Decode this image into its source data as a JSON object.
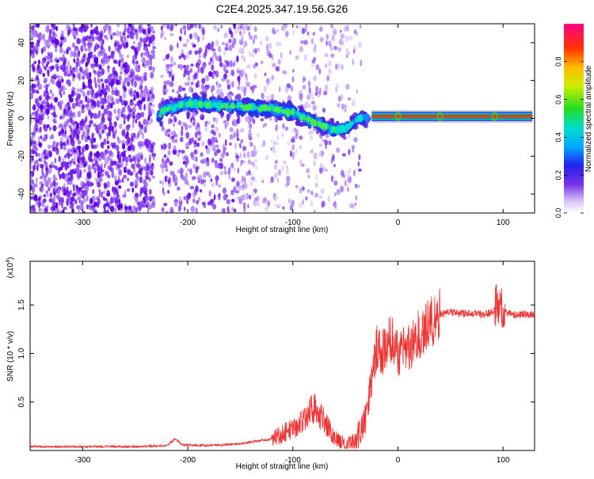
{
  "chart_data": [
    {
      "type": "heatmap",
      "title": "C2E4.2025.347.19.56.G26",
      "xlabel": "Height of straight line (km)",
      "ylabel": "Frequency (Hz)",
      "xlim": [
        -350,
        130
      ],
      "ylim": [
        -50,
        50
      ],
      "x_ticks": [
        -300,
        -200,
        -100,
        0,
        100
      ],
      "y_ticks": [
        -40,
        -20,
        0,
        20,
        40
      ],
      "colorbar": {
        "label": "Normalized spectral amplitude",
        "range": [
          0,
          1
        ],
        "ticks": [
          "0.0",
          "0.2",
          "0.4",
          "0.6",
          "0.8"
        ]
      },
      "ridge": [
        {
          "x": -225,
          "y": 4
        },
        {
          "x": -200,
          "y": 8
        },
        {
          "x": -170,
          "y": 7
        },
        {
          "x": -140,
          "y": 6
        },
        {
          "x": -115,
          "y": 5
        },
        {
          "x": -95,
          "y": 2
        },
        {
          "x": -75,
          "y": -3
        },
        {
          "x": -60,
          "y": -6
        },
        {
          "x": -48,
          "y": -5
        },
        {
          "x": -38,
          "y": 0
        },
        {
          "x": -20,
          "y": 1
        },
        {
          "x": 0,
          "y": 1
        },
        {
          "x": 50,
          "y": 1
        },
        {
          "x": 128,
          "y": 1
        }
      ],
      "strong_band": {
        "x_start": -25,
        "x_end": 128,
        "frequency": 1
      }
    },
    {
      "type": "line",
      "xlabel": "Height of straight line (km)",
      "ylabel": "SNR (10 * v/v)",
      "multiplier": "(x10",
      "multiplier_exp": "4",
      "multiplier_close": ")",
      "xlim": [
        -350,
        130
      ],
      "ylim": [
        0,
        1.95
      ],
      "x_ticks": [
        -300,
        -200,
        -100,
        0,
        100
      ],
      "y_ticks": [
        "0.5",
        "1.0",
        "1.5"
      ],
      "series": [
        {
          "name": "SNR",
          "color": "#ee3333",
          "x": [
            -350,
            -300,
            -250,
            -220,
            -212,
            -205,
            -180,
            -150,
            -120,
            -100,
            -90,
            -80,
            -70,
            -60,
            -50,
            -40,
            -30,
            -25,
            -20,
            -15,
            -10,
            -5,
            0,
            10,
            20,
            30,
            40,
            50,
            60,
            70,
            80,
            90,
            95,
            100,
            105,
            110,
            120,
            130
          ],
          "y": [
            0.04,
            0.04,
            0.04,
            0.05,
            0.12,
            0.06,
            0.05,
            0.07,
            0.12,
            0.22,
            0.33,
            0.45,
            0.3,
            0.12,
            0.06,
            0.1,
            0.35,
            0.75,
            1.05,
            1.0,
            1.1,
            1.18,
            1.0,
            1.05,
            1.2,
            1.32,
            1.4,
            1.43,
            1.41,
            1.42,
            1.4,
            1.43,
            1.52,
            1.45,
            1.41,
            1.4,
            1.4,
            1.4
          ]
        }
      ]
    }
  ],
  "colors": {
    "snr_line": "#ee3333",
    "ridge_band": "#ee3333",
    "band_edge": "#00aa33"
  }
}
